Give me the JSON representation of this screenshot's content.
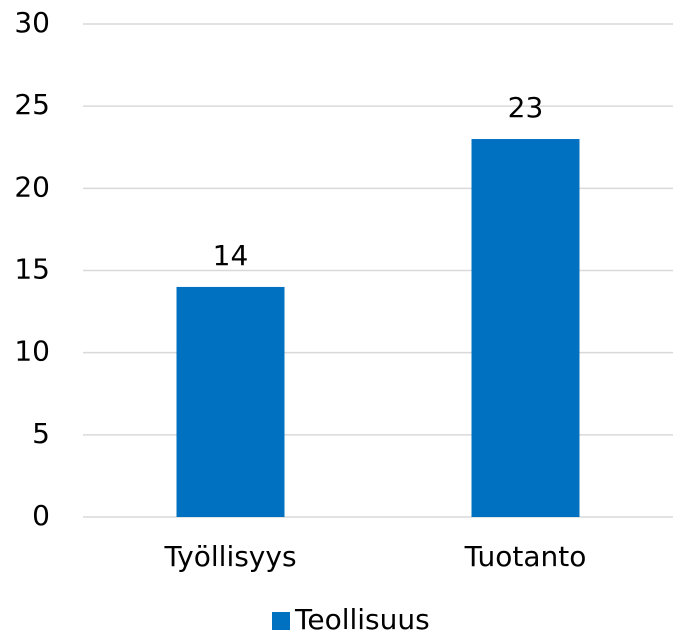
{
  "chart_data": {
    "type": "bar",
    "categories": [
      "Työllisyys",
      "Tuotanto"
    ],
    "series": [
      {
        "name": "Teollisuus",
        "color": "#0070c0",
        "values": [
          14,
          23
        ]
      }
    ],
    "ylim": [
      0,
      30
    ],
    "yticks": [
      0,
      5,
      10,
      15,
      20,
      25,
      30
    ],
    "grid": true,
    "legend": "bottom"
  }
}
